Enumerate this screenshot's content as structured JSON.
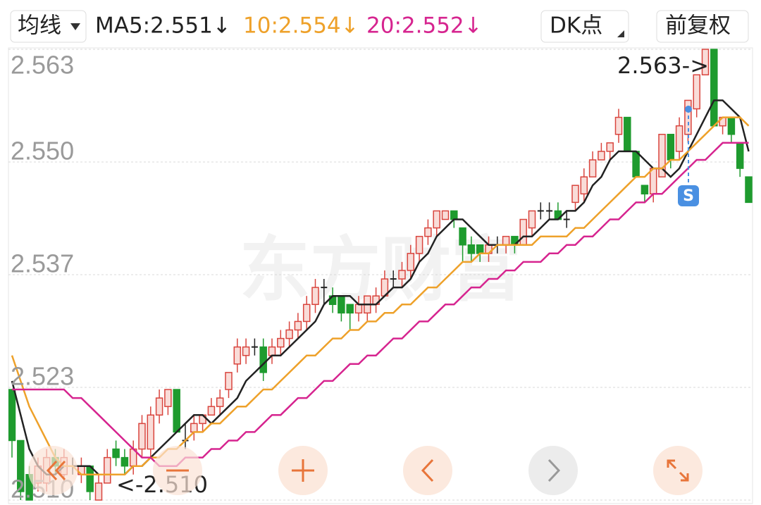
{
  "toolbar": {
    "ma_menu": "均线",
    "dk": "DK点",
    "adjust": "前复权"
  },
  "chart_data": {
    "type": "candlestick",
    "watermark": "东方财富",
    "up_color": "#d9453e",
    "down_color": "#1e9b2e",
    "flat_color": "#222222",
    "open": [
      2.523,
      2.517,
      2.513,
      2.512,
      2.512,
      2.515,
      2.513,
      2.514,
      2.513,
      2.514,
      2.51,
      2.512,
      2.516,
      2.515,
      2.514,
      2.516,
      2.516,
      2.52,
      2.521,
      2.523,
      2.517,
      2.518,
      2.519,
      2.52,
      2.521,
      2.523,
      2.526,
      2.527,
      2.528,
      2.528,
      2.527,
      2.528,
      2.529,
      2.53,
      2.531,
      2.533,
      2.535,
      2.534,
      2.534,
      2.533,
      2.532,
      2.532,
      2.533,
      2.534,
      2.536,
      2.536,
      2.537,
      2.539,
      2.541,
      2.542,
      2.543,
      2.544,
      2.542,
      2.54,
      2.54,
      2.539,
      2.54,
      2.54,
      2.541,
      2.54,
      2.542,
      2.544,
      2.544,
      2.544,
      2.543,
      2.545,
      2.546,
      2.548,
      2.55,
      2.551,
      2.553,
      2.555,
      2.551,
      2.547,
      2.546,
      2.548,
      2.553,
      2.551,
      2.553,
      2.556,
      2.56,
      2.563,
      2.554,
      2.555,
      2.552,
      2.548
    ],
    "close": [
      2.517,
      2.511,
      2.51,
      2.514,
      2.515,
      2.514,
      2.515,
      2.514,
      2.514,
      2.511,
      2.512,
      2.515,
      2.515,
      2.514,
      2.516,
      2.519,
      2.52,
      2.522,
      2.523,
      2.518,
      2.517,
      2.519,
      2.52,
      2.521,
      2.522,
      2.525,
      2.528,
      2.528,
      2.528,
      2.525,
      2.528,
      2.529,
      2.53,
      2.531,
      2.533,
      2.535,
      2.535,
      2.533,
      2.532,
      2.532,
      2.533,
      2.534,
      2.534,
      2.536,
      2.536,
      2.537,
      2.539,
      2.541,
      2.542,
      2.544,
      2.544,
      2.543,
      2.54,
      2.539,
      2.539,
      2.54,
      2.54,
      2.541,
      2.54,
      2.543,
      2.544,
      2.544,
      2.544,
      2.543,
      2.543,
      2.547,
      2.548,
      2.55,
      2.551,
      2.552,
      2.555,
      2.551,
      2.548,
      2.546,
      2.549,
      2.553,
      2.55,
      2.554,
      2.557,
      2.56,
      2.563,
      2.554,
      2.555,
      2.553,
      2.549,
      2.545
    ],
    "high": [
      2.523,
      2.517,
      2.514,
      2.515,
      2.516,
      2.516,
      2.516,
      2.515,
      2.515,
      2.514,
      2.513,
      2.516,
      2.517,
      2.516,
      2.517,
      2.52,
      2.521,
      2.523,
      2.523,
      2.523,
      2.519,
      2.52,
      2.52,
      2.522,
      2.523,
      2.525,
      2.529,
      2.529,
      2.529,
      2.529,
      2.529,
      2.53,
      2.531,
      2.532,
      2.534,
      2.536,
      2.536,
      2.535,
      2.534,
      2.533,
      2.534,
      2.534,
      2.535,
      2.537,
      2.537,
      2.538,
      2.54,
      2.541,
      2.543,
      2.544,
      2.544,
      2.544,
      2.542,
      2.541,
      2.54,
      2.541,
      2.541,
      2.541,
      2.541,
      2.543,
      2.544,
      2.545,
      2.545,
      2.545,
      2.544,
      2.547,
      2.549,
      2.551,
      2.552,
      2.552,
      2.556,
      2.555,
      2.551,
      2.547,
      2.549,
      2.553,
      2.553,
      2.555,
      2.557,
      2.56,
      2.563,
      2.563,
      2.555,
      2.555,
      2.552,
      2.548
    ],
    "low": [
      2.515,
      2.51,
      2.51,
      2.511,
      2.511,
      2.513,
      2.512,
      2.513,
      2.512,
      2.51,
      2.51,
      2.512,
      2.514,
      2.513,
      2.513,
      2.515,
      2.515,
      2.519,
      2.52,
      2.518,
      2.516,
      2.517,
      2.518,
      2.52,
      2.52,
      2.522,
      2.525,
      2.526,
      2.527,
      2.524,
      2.526,
      2.527,
      2.528,
      2.529,
      2.53,
      2.532,
      2.533,
      2.532,
      2.531,
      2.53,
      2.531,
      2.531,
      2.532,
      2.534,
      2.535,
      2.535,
      2.536,
      2.538,
      2.54,
      2.541,
      2.543,
      2.542,
      2.538,
      2.538,
      2.538,
      2.538,
      2.539,
      2.539,
      2.539,
      2.54,
      2.541,
      2.543,
      2.543,
      2.543,
      2.542,
      2.544,
      2.545,
      2.548,
      2.55,
      2.55,
      2.552,
      2.551,
      2.548,
      2.545,
      2.545,
      2.548,
      2.549,
      2.55,
      2.552,
      2.555,
      2.56,
      2.554,
      2.553,
      2.552,
      2.548,
      2.545
    ],
    "series": [
      {
        "name": "MA5:2.551↓",
        "color": "#222222",
        "values": [
          2.524,
          2.52,
          2.516,
          2.514,
          2.513,
          2.513,
          2.514,
          2.514,
          2.514,
          2.514,
          2.513,
          2.513,
          2.513,
          2.513,
          2.514,
          2.514,
          2.515,
          2.516,
          2.517,
          2.518,
          2.519,
          2.52,
          2.52,
          2.519,
          2.52,
          2.521,
          2.522,
          2.524,
          2.525,
          2.526,
          2.527,
          2.527,
          2.528,
          2.529,
          2.53,
          2.531,
          2.533,
          2.534,
          2.534,
          2.534,
          2.533,
          2.533,
          2.533,
          2.534,
          2.535,
          2.535,
          2.536,
          2.538,
          2.539,
          2.541,
          2.542,
          2.543,
          2.543,
          2.542,
          2.541,
          2.54,
          2.54,
          2.54,
          2.54,
          2.541,
          2.541,
          2.542,
          2.543,
          2.543,
          2.544,
          2.544,
          2.545,
          2.547,
          2.548,
          2.55,
          2.551,
          2.551,
          2.551,
          2.55,
          2.549,
          2.549,
          2.548,
          2.549,
          2.551,
          2.553,
          2.555,
          2.557,
          2.557,
          2.556,
          2.555,
          2.551
        ]
      },
      {
        "name": "10:2.554↓",
        "color": "#eea12a",
        "values": [
          2.527,
          2.524,
          2.521,
          2.519,
          2.517,
          2.515,
          2.514,
          2.514,
          2.513,
          2.513,
          2.513,
          2.513,
          2.513,
          2.513,
          2.514,
          2.514,
          2.515,
          2.515,
          2.516,
          2.516,
          2.517,
          2.518,
          2.518,
          2.519,
          2.519,
          2.52,
          2.521,
          2.521,
          2.522,
          2.523,
          2.523,
          2.524,
          2.525,
          2.526,
          2.527,
          2.527,
          2.528,
          2.529,
          2.529,
          2.53,
          2.53,
          2.531,
          2.531,
          2.532,
          2.532,
          2.533,
          2.533,
          2.534,
          2.535,
          2.535,
          2.536,
          2.537,
          2.538,
          2.538,
          2.539,
          2.539,
          2.54,
          2.54,
          2.54,
          2.54,
          2.54,
          2.541,
          2.541,
          2.541,
          2.541,
          2.542,
          2.542,
          2.543,
          2.544,
          2.545,
          2.546,
          2.547,
          2.548,
          2.548,
          2.549,
          2.549,
          2.55,
          2.55,
          2.551,
          2.552,
          2.553,
          2.554,
          2.555,
          2.555,
          2.555,
          2.554
        ]
      },
      {
        "name": "20:2.552↓",
        "color": "#d6248f",
        "values": [
          2.523,
          2.523,
          2.523,
          2.523,
          2.523,
          2.523,
          2.523,
          2.522,
          2.522,
          2.521,
          2.52,
          2.519,
          2.518,
          2.517,
          2.516,
          2.515,
          2.515,
          2.514,
          2.514,
          2.514,
          2.515,
          2.515,
          2.515,
          2.516,
          2.516,
          2.517,
          2.517,
          2.518,
          2.518,
          2.519,
          2.52,
          2.52,
          2.521,
          2.522,
          2.522,
          2.523,
          2.524,
          2.524,
          2.525,
          2.526,
          2.526,
          2.527,
          2.527,
          2.528,
          2.529,
          2.529,
          2.53,
          2.531,
          2.531,
          2.532,
          2.533,
          2.533,
          2.534,
          2.535,
          2.535,
          2.536,
          2.536,
          2.537,
          2.537,
          2.538,
          2.538,
          2.538,
          2.539,
          2.539,
          2.54,
          2.54,
          2.541,
          2.541,
          2.542,
          2.543,
          2.543,
          2.544,
          2.545,
          2.545,
          2.546,
          2.546,
          2.547,
          2.548,
          2.549,
          2.55,
          2.55,
          2.551,
          2.552,
          2.552,
          2.552,
          2.552
        ]
      }
    ],
    "ylim": [
      2.51,
      2.563
    ],
    "yticks": [
      2.563,
      {
        "value": 2.54975,
        "label": "2.550"
      },
      {
        "value": 2.5365,
        "label": "2.537"
      },
      {
        "value": 2.52325,
        "label": "2.523"
      },
      {
        "value": 2.51,
        "label": "2.510"
      }
    ],
    "grid": true,
    "annotations": [
      "2.563->",
      "<-2.510"
    ],
    "signal": "S"
  }
}
